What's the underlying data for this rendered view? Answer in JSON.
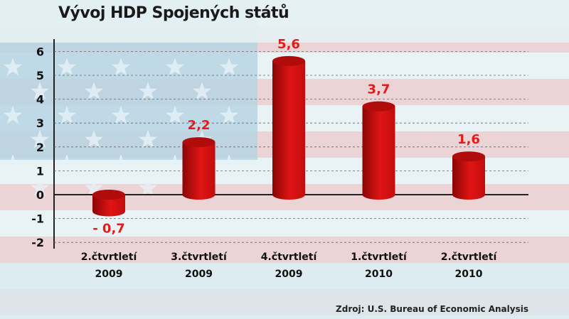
{
  "chart_data": {
    "type": "bar",
    "title": "Vývoj HDP Spojených států",
    "categories": [
      [
        "2.čtvrtletí",
        "2009"
      ],
      [
        "3.čtvrtletí",
        "2009"
      ],
      [
        "4.čtvrtletí",
        "2009"
      ],
      [
        "1.čtvrtletí",
        "2010"
      ],
      [
        "2.čtvrtletí",
        "2010"
      ]
    ],
    "values": [
      -0.7,
      2.2,
      5.6,
      3.7,
      1.6
    ],
    "data_labels": [
      "- 0,7",
      "2,2",
      "5,6",
      "3,7",
      "1,6"
    ],
    "yticks": [
      6,
      5,
      4,
      3,
      2,
      1,
      0,
      -1,
      -2
    ],
    "ylim": [
      -2,
      6
    ],
    "grid": true,
    "bar_style": "3d-cylinder",
    "bar_color": "#d01010",
    "label_color": "#e31b1b",
    "source": "Zdroj: U.S. Bureau of Economic Analysis"
  }
}
